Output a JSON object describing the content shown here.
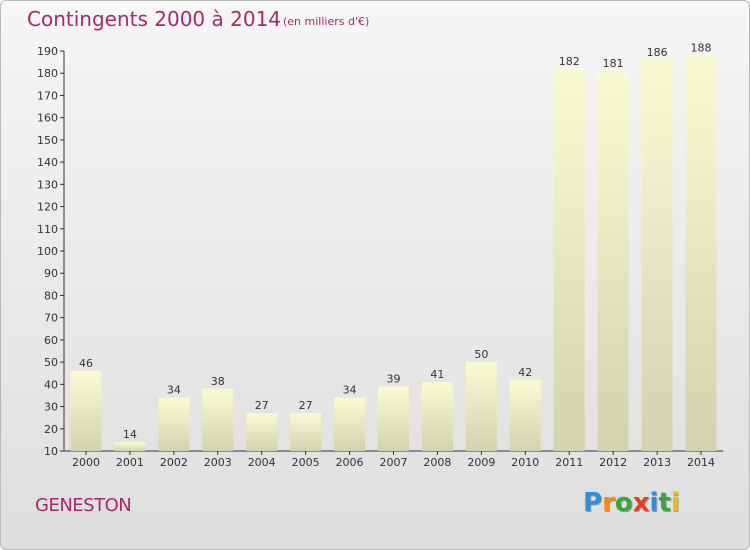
{
  "header": {
    "title": "Contingents 2000 à 2014",
    "subtitle": "(en milliers d'€)"
  },
  "footer": {
    "commune": "GENESTON",
    "brand_letters": [
      "P",
      "r",
      "o",
      "x",
      "i",
      "t",
      "i"
    ],
    "brand_colors": [
      "#2f8fd8",
      "#f08a1c",
      "#3ca43a",
      "#e53a2a",
      "#2f8fd8",
      "#3ca43a",
      "#f0b81c"
    ]
  },
  "chart_data": {
    "type": "bar",
    "title": "Contingents 2000 à 2014",
    "subtitle": "(en milliers d'€)",
    "xlabel": "",
    "ylabel": "",
    "categories": [
      "2000",
      "2001",
      "2002",
      "2003",
      "2004",
      "2005",
      "2006",
      "2007",
      "2008",
      "2009",
      "2010",
      "2011",
      "2012",
      "2013",
      "2014"
    ],
    "values": [
      46,
      14,
      34,
      38,
      27,
      27,
      34,
      39,
      41,
      50,
      42,
      182,
      181,
      186,
      188
    ],
    "ylim": [
      10,
      190
    ],
    "yticks": [
      10,
      20,
      30,
      40,
      50,
      60,
      70,
      80,
      90,
      100,
      110,
      120,
      130,
      140,
      150,
      160,
      170,
      180,
      190
    ],
    "grid": false,
    "legend": "none",
    "colors": {
      "bar_top": "#fafad2",
      "bar_bottom": "#d2d2b0",
      "title": "#a8286a",
      "axis": "#333333"
    }
  }
}
